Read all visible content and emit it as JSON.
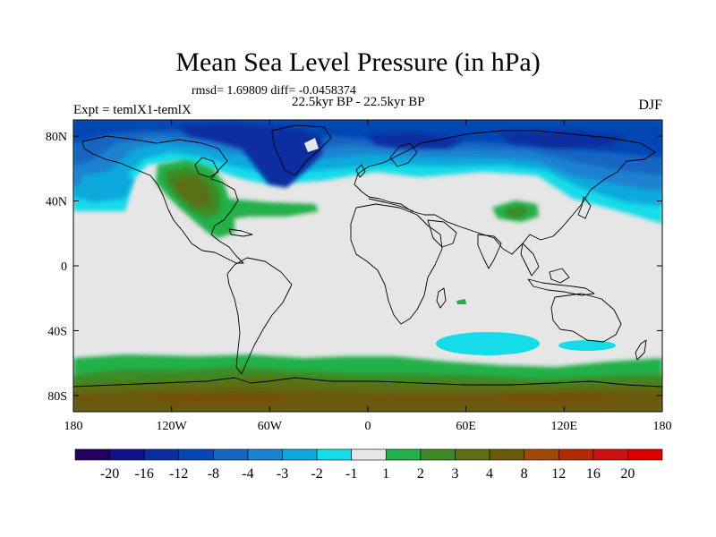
{
  "map": {
    "title": "Mean Sea Level Pressure (in hPa)",
    "stats": "rmsd= 1.69809 diff= -0.0458374",
    "period": "22.5kyr BP - 22.5kyr BP",
    "experiment": "Expt = temlX1-temlX",
    "season": "DJF",
    "lon_ticks": [
      "180",
      "120W",
      "60W",
      "0",
      "60E",
      "120E",
      "180"
    ],
    "lat_ticks": [
      "80N",
      "40N",
      "0",
      "40S",
      "80S"
    ],
    "lon_values": [
      -180,
      -120,
      -60,
      0,
      60,
      120,
      180
    ],
    "lat_values": [
      80,
      40,
      0,
      -40,
      -80
    ],
    "projection_extent": {
      "lon": [
        -180,
        180
      ],
      "lat": [
        -90,
        90
      ]
    }
  },
  "colorbar": {
    "labels": [
      "-20",
      "-16",
      "-12",
      "-8",
      "-4",
      "-3",
      "-2",
      "-1",
      "1",
      "2",
      "3",
      "4",
      "8",
      "12",
      "16",
      "20"
    ],
    "colors": [
      "#26005f",
      "#10128c",
      "#0a2da0",
      "#0547b4",
      "#1565c2",
      "#1a82d0",
      "#10a8dc",
      "#16dbe8",
      "#e6e6e6",
      "#22b04a",
      "#3c8a26",
      "#5a7012",
      "#6b5a0a",
      "#a04808",
      "#b42a04",
      "#cc1111",
      "#dd0000"
    ]
  },
  "fields": {
    "neutral_color": "#e6e6e6",
    "coast_color": "#000000"
  }
}
